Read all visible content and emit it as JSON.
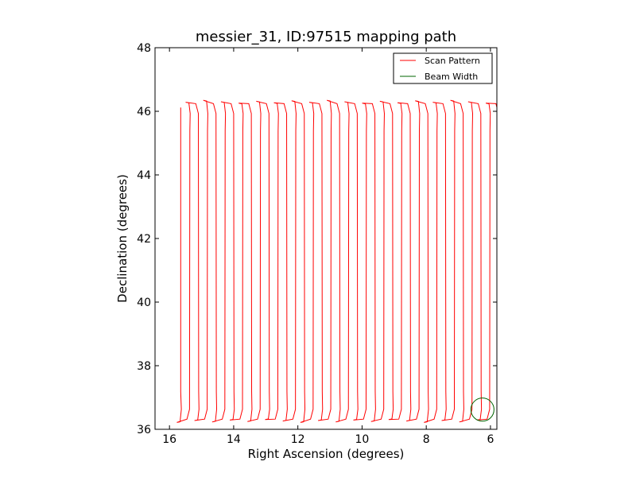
{
  "chart_data": {
    "type": "line",
    "title": "messier_31, ID:97515 mapping path",
    "xlabel": "Right Ascension (degrees)",
    "ylabel": "Declination (degrees)",
    "xlim": [
      16.45,
      5.8
    ],
    "ylim": [
      36,
      48
    ],
    "x_inverted": true,
    "xticks": [
      "16",
      "14",
      "12",
      "10",
      "8",
      "6"
    ],
    "xtick_values": [
      16,
      14,
      12,
      10,
      8,
      6
    ],
    "yticks": [
      "36",
      "38",
      "40",
      "42",
      "44",
      "46",
      "48"
    ],
    "ytick_values": [
      36,
      38,
      40,
      42,
      44,
      46,
      48
    ],
    "grid": false,
    "legend_position": "top-right",
    "series": [
      {
        "name": "Scan Pattern",
        "color": "#ff0000",
        "scan": {
          "ra_start": 15.65,
          "ra_step": -0.275,
          "dec_low": 36.28,
          "dec_high": 46.28,
          "dec_start": 46.12,
          "turn_depth": 0.2,
          "ra_end": 5.8
        }
      },
      {
        "name": "Beam Width",
        "color": "#006400",
        "circle": {
          "ra": 6.25,
          "dec": 36.62,
          "radius_deg": 0.36
        }
      }
    ]
  }
}
